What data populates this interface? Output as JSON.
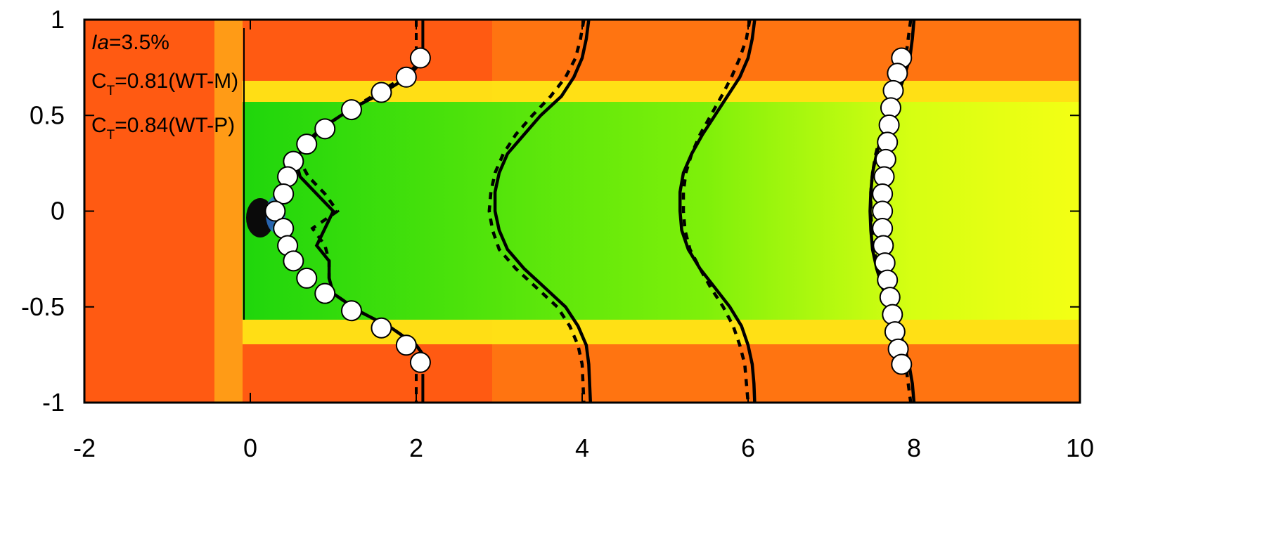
{
  "chart_data": {
    "type": "line",
    "xlim": [
      -2,
      10
    ],
    "ylim": [
      -1,
      1
    ],
    "x_ticks": [
      "-2",
      "0",
      "2",
      "4",
      "6",
      "8",
      "10"
    ],
    "y_ticks": [
      "-1",
      "-0.5",
      "0",
      "0.5",
      "1"
    ],
    "grid": false,
    "background": "contour",
    "colors": {
      "freestream": "#ff5a12",
      "wake_core": "#1ee00a",
      "wake_far": "#e8ff10",
      "edge": "#ffe616",
      "hub": "#0a0a0a",
      "line": "#000000",
      "marker_fill": "#ffffff"
    },
    "annotations": {
      "ia_italic": "Ia",
      "ia_rest": "=3.5%",
      "ct1_c": "C",
      "ct1_sub": "T",
      "ct1_rest": "=0.81(WT-M)",
      "ct2_c": "C",
      "ct2_sub": "T",
      "ct2_rest": "=0.84(WT-P)"
    },
    "profiles": [
      {
        "station": 0,
        "y": [
          0.8,
          0.7,
          0.62,
          0.53,
          0.43,
          0.35,
          0.26,
          0.18,
          0.09,
          0.0,
          -0.09,
          -0.18,
          -0.26,
          -0.35,
          -0.43,
          -0.52,
          -0.61,
          -0.7,
          -0.79
        ],
        "solid": [
          2.1,
          1.9,
          1.6,
          1.2,
          0.85,
          0.65,
          0.55,
          0.6,
          0.8,
          1.0,
          0.9,
          0.8,
          0.95,
          0.95,
          1.0,
          1.3,
          1.7,
          2.0,
          2.15
        ],
        "dashed": [
          2.1,
          1.85,
          1.55,
          1.2,
          0.85,
          0.7,
          0.6,
          0.7,
          0.9,
          1.05,
          0.75,
          0.9,
          0.95,
          0.95,
          1.0,
          1.3,
          1.7,
          2.0,
          2.15
        ],
        "exp": [
          2.05,
          1.88,
          1.58,
          1.22,
          0.9,
          0.68,
          0.52,
          0.45,
          0.4,
          0.3,
          0.4,
          0.45,
          0.52,
          0.68,
          0.9,
          1.22,
          1.58,
          1.88,
          2.05
        ],
        "edge_solid": [
          2.08,
          2.08
        ],
        "edge_dashed": [
          2.0,
          2.0
        ]
      },
      {
        "station": 2,
        "y": [
          1.0,
          0.9,
          0.8,
          0.7,
          0.6,
          0.5,
          0.4,
          0.3,
          0.2,
          0.1,
          0.0,
          -0.1,
          -0.2,
          -0.3,
          -0.4,
          -0.5,
          -0.6,
          -0.7,
          -0.8,
          -0.9,
          -1.0
        ],
        "solid": [
          4.08,
          4.05,
          4.0,
          3.9,
          3.75,
          3.5,
          3.3,
          3.1,
          3.0,
          2.95,
          2.95,
          3.0,
          3.1,
          3.3,
          3.55,
          3.8,
          3.95,
          4.05,
          4.08,
          4.09,
          4.1
        ],
        "dashed": [
          4.02,
          3.98,
          3.92,
          3.8,
          3.62,
          3.4,
          3.2,
          3.05,
          2.95,
          2.9,
          2.88,
          2.92,
          3.0,
          3.2,
          3.45,
          3.7,
          3.85,
          3.95,
          4.0,
          4.01,
          4.02
        ]
      },
      {
        "station": 4,
        "y": [
          1.0,
          0.9,
          0.8,
          0.7,
          0.6,
          0.5,
          0.4,
          0.3,
          0.2,
          0.1,
          0.0,
          -0.1,
          -0.2,
          -0.3,
          -0.4,
          -0.5,
          -0.6,
          -0.7,
          -0.8,
          -0.9,
          -1.0
        ],
        "solid": [
          6.08,
          6.05,
          6.0,
          5.9,
          5.75,
          5.6,
          5.45,
          5.32,
          5.22,
          5.18,
          5.18,
          5.2,
          5.28,
          5.42,
          5.6,
          5.78,
          5.92,
          6.0,
          6.05,
          6.07,
          6.08
        ],
        "dashed": [
          6.02,
          5.98,
          5.9,
          5.8,
          5.68,
          5.55,
          5.42,
          5.32,
          5.25,
          5.22,
          5.22,
          5.24,
          5.3,
          5.42,
          5.55,
          5.7,
          5.82,
          5.9,
          5.96,
          5.98,
          6.0
        ]
      },
      {
        "station": 6,
        "y": [
          1.0,
          0.9,
          0.8,
          0.7,
          0.6,
          0.5,
          0.4,
          0.3,
          0.2,
          0.1,
          0.0,
          -0.1,
          -0.2,
          -0.3,
          -0.4,
          -0.5,
          -0.6,
          -0.7,
          -0.8,
          -0.9,
          -1.0
        ],
        "solid": [
          8.0,
          7.98,
          7.95,
          7.88,
          7.8,
          7.72,
          7.62,
          7.55,
          7.5,
          7.48,
          7.47,
          7.48,
          7.5,
          7.55,
          7.62,
          7.72,
          7.8,
          7.88,
          7.94,
          7.98,
          8.0
        ],
        "dashed": [
          7.96,
          7.93,
          7.9,
          7.84,
          7.76,
          7.68,
          7.6,
          7.54,
          7.5,
          7.48,
          7.48,
          7.49,
          7.52,
          7.56,
          7.63,
          7.7,
          7.78,
          7.84,
          7.9,
          7.93,
          7.96
        ],
        "exp_y": [
          0.8,
          0.72,
          0.63,
          0.54,
          0.45,
          0.36,
          0.27,
          0.18,
          0.09,
          0.0,
          -0.09,
          -0.18,
          -0.27,
          -0.36,
          -0.45,
          -0.54,
          -0.63,
          -0.72,
          -0.8
        ],
        "exp": [
          7.85,
          7.8,
          7.75,
          7.72,
          7.7,
          7.68,
          7.66,
          7.64,
          7.62,
          7.62,
          7.62,
          7.63,
          7.65,
          7.68,
          7.71,
          7.74,
          7.77,
          7.81,
          7.85
        ]
      }
    ]
  }
}
